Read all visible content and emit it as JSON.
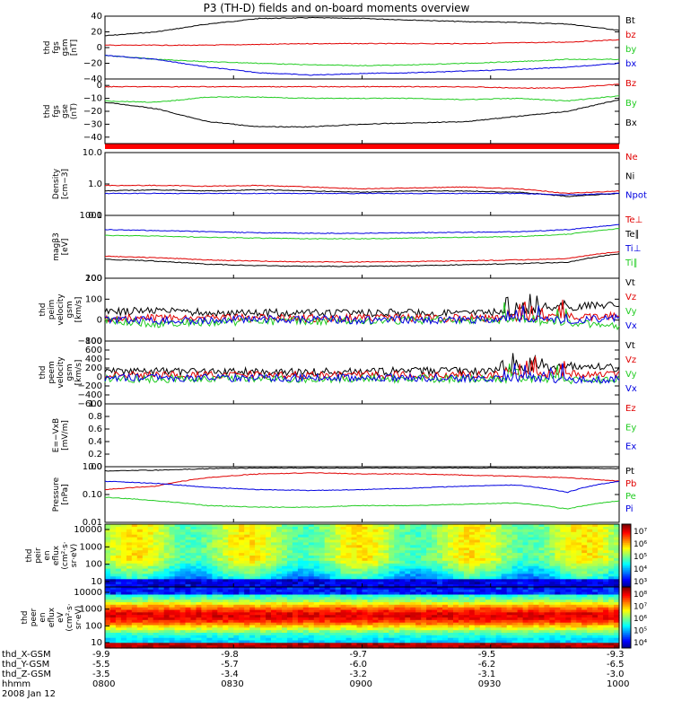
{
  "title": "P3 (TH-D) fields and on-board moments overview",
  "date": "2008 Jan 12",
  "colors": {
    "red": "#e00000",
    "green": "#22cc22",
    "blue": "#0000e0",
    "black": "#000000",
    "bar": "#ff0000"
  },
  "chart_data": {
    "type": "line",
    "x_time_ticks": [
      "0800",
      "0830",
      "0900",
      "0930",
      "1000"
    ],
    "ephemeris": [
      {
        "label": "thd_X-GSM",
        "values": [
          "-9.9",
          "-9.8",
          "-9.7",
          "-9.5",
          "-9.3"
        ]
      },
      {
        "label": "thd_Y-GSM",
        "values": [
          "-5.5",
          "-5.7",
          "-6.0",
          "-6.2",
          "-6.5"
        ]
      },
      {
        "label": "thd_Z-GSM",
        "values": [
          "-3.5",
          "-3.4",
          "-3.2",
          "-3.1",
          "-3.0"
        ]
      },
      {
        "label": "hhmm",
        "values": [
          "0800",
          "0830",
          "0900",
          "0930",
          "1000"
        ]
      }
    ],
    "panels": [
      {
        "id": "fgs_gsm",
        "ylabel": [
          "thd",
          "fgs",
          "gsm",
          "[nT]"
        ],
        "yscale": "linear",
        "ylim": [
          -40,
          40
        ],
        "yticks": [
          "40",
          "20",
          "0",
          "−20",
          "−40"
        ],
        "series": [
          {
            "name": "Bt",
            "color": "black",
            "values": [
              15,
              20,
              30,
              37,
              38,
              37,
              35,
              33,
              32,
              30,
              22
            ]
          },
          {
            "name": "bz",
            "color": "red",
            "values": [
              3,
              3,
              3,
              4,
              5,
              5,
              5,
              5,
              6,
              7,
              10
            ]
          },
          {
            "name": "by",
            "color": "green",
            "values": [
              -10,
              -15,
              -18,
              -20,
              -22,
              -23,
              -22,
              -20,
              -18,
              -15,
              -15
            ]
          },
          {
            "name": "bx",
            "color": "blue",
            "values": [
              -10,
              -15,
              -25,
              -32,
              -35,
              -33,
              -32,
              -30,
              -28,
              -25,
              -20
            ]
          }
        ]
      },
      {
        "id": "fgs_gse",
        "ylabel": [
          "thd",
          "fgs",
          "gse",
          "(nT)"
        ],
        "yscale": "linear",
        "ylim": [
          -45,
          5
        ],
        "yticks": [
          "0",
          "−10",
          "−20",
          "−30",
          "−40"
        ],
        "series": [
          {
            "name": "Bz",
            "color": "red",
            "values": [
              -1,
              -1,
              -1,
              -1,
              -1,
              -1,
              -1,
              -1,
              -2,
              -2,
              1
            ]
          },
          {
            "name": "By",
            "color": "green",
            "values": [
              -12,
              -13,
              -9,
              -9,
              -10,
              -10,
              -10,
              -11,
              -10,
              -12,
              -8
            ]
          },
          {
            "name": "Bx",
            "color": "black",
            "values": [
              -13,
              -18,
              -28,
              -32,
              -32,
              -30,
              -29,
              -28,
              -24,
              -20,
              -11
            ]
          }
        ]
      },
      {
        "id": "density",
        "ylabel": [
          "Density",
          "[cm−3]"
        ],
        "yscale": "log",
        "ylim": [
          0.1,
          10
        ],
        "yticks": [
          "10.0",
          "1.0",
          "0.1"
        ],
        "series": [
          {
            "name": "Ne",
            "color": "red",
            "values": [
              0.9,
              0.9,
              0.85,
              0.9,
              0.8,
              0.7,
              0.75,
              0.8,
              0.7,
              0.5,
              0.6
            ]
          },
          {
            "name": "Ni",
            "color": "black",
            "values": [
              0.6,
              0.65,
              0.6,
              0.65,
              0.6,
              0.55,
              0.6,
              0.6,
              0.55,
              0.4,
              0.5
            ]
          },
          {
            "name": "Npot",
            "color": "blue",
            "values": [
              0.5,
              0.5,
              0.5,
              0.5,
              0.5,
              0.5,
              0.5,
              0.5,
              0.5,
              0.45,
              0.5
            ]
          }
        ]
      },
      {
        "id": "temperature",
        "ylabel": [
          "magβ3",
          "[eV]"
        ],
        "yscale": "log",
        "ylim": [
          100,
          10000
        ],
        "yticks": [
          "1000",
          "100"
        ],
        "series": [
          {
            "name": "Te⊥",
            "color": "red",
            "values": [
              500,
              450,
              380,
              350,
              330,
              330,
              340,
              360,
              380,
              420,
              700
            ]
          },
          {
            "name": "Te∥",
            "color": "black",
            "values": [
              400,
              350,
              280,
              250,
              240,
              240,
              250,
              270,
              290,
              320,
              600
            ]
          },
          {
            "name": "Ti⊥",
            "color": "blue",
            "values": [
              3500,
              3300,
              3000,
              2800,
              2700,
              2700,
              2800,
              2900,
              3000,
              3500,
              5000
            ]
          },
          {
            "name": "Ti∥",
            "color": "green",
            "values": [
              2300,
              2200,
              2000,
              1900,
              1800,
              1800,
              1900,
              2000,
              2100,
              2500,
              3800
            ]
          }
        ]
      },
      {
        "id": "peim_velocity",
        "ylabel": [
          "thd",
          "peim",
          "velocity",
          "gsm",
          "[km/s]"
        ],
        "yscale": "linear",
        "ylim": [
          -100,
          200
        ],
        "yticks": [
          "200",
          "100",
          "0",
          "−100"
        ],
        "series": [
          {
            "name": "Vt",
            "color": "black",
            "values": [
              40,
              45,
              35,
              35,
              35,
              35,
              35,
              35,
              40,
              60,
              80
            ]
          },
          {
            "name": "Vz",
            "color": "red",
            "values": [
              10,
              10,
              10,
              10,
              10,
              10,
              10,
              10,
              10,
              15,
              20
            ]
          },
          {
            "name": "Vy",
            "color": "green",
            "values": [
              0,
              -20,
              -10,
              -5,
              -5,
              -5,
              0,
              0,
              0,
              -10,
              -30
            ]
          },
          {
            "name": "Vx",
            "color": "blue",
            "values": [
              0,
              0,
              0,
              5,
              5,
              0,
              0,
              0,
              5,
              0,
              10
            ]
          }
        ]
      },
      {
        "id": "peem_velocity",
        "ylabel": [
          "thd",
          "peem",
          "velocity",
          "gsm",
          "[km/s]"
        ],
        "yscale": "linear",
        "ylim": [
          -600,
          800
        ],
        "yticks": [
          "800",
          "600",
          "400",
          "200",
          "0",
          "−200",
          "−400",
          "−600"
        ],
        "series": [
          {
            "name": "Vt",
            "color": "black",
            "values": [
              120,
              120,
              120,
              120,
              120,
              120,
              130,
              130,
              150,
              250,
              200
            ]
          },
          {
            "name": "Vz",
            "color": "red",
            "values": [
              40,
              40,
              40,
              40,
              40,
              40,
              40,
              40,
              40,
              60,
              60
            ]
          },
          {
            "name": "Vy",
            "color": "green",
            "values": [
              -40,
              -40,
              -40,
              -40,
              -40,
              -40,
              -40,
              -40,
              -40,
              -80,
              -60
            ]
          },
          {
            "name": "Vx",
            "color": "blue",
            "values": [
              -20,
              -20,
              -20,
              -20,
              -20,
              -20,
              -20,
              -20,
              -20,
              -60,
              -40
            ]
          }
        ]
      },
      {
        "id": "e_vxb",
        "ylabel": [
          "E=−VxB",
          "[mV/m]"
        ],
        "yscale": "linear",
        "ylim": [
          0,
          1
        ],
        "yticks": [
          "1.0",
          "0.8",
          "0.6",
          "0.4",
          "0.2",
          "0.0"
        ],
        "series": [
          {
            "name": "Ez",
            "color": "red",
            "values": []
          },
          {
            "name": "Ey",
            "color": "green",
            "values": []
          },
          {
            "name": "Ex",
            "color": "blue",
            "values": []
          }
        ]
      },
      {
        "id": "pressure",
        "ylabel": [
          "Pressure",
          "[nPa]"
        ],
        "yscale": "log",
        "ylim": [
          0.01,
          1
        ],
        "yticks": [
          "1.00",
          "0.10",
          "0.01"
        ],
        "series": [
          {
            "name": "Pt",
            "color": "black",
            "values": [
              0.7,
              0.75,
              0.85,
              0.9,
              0.9,
              0.9,
              0.9,
              0.9,
              0.9,
              0.9,
              0.85
            ]
          },
          {
            "name": "Pb",
            "color": "red",
            "values": [
              0.15,
              0.2,
              0.4,
              0.55,
              0.6,
              0.55,
              0.55,
              0.5,
              0.45,
              0.4,
              0.3
            ]
          },
          {
            "name": "Pe",
            "color": "green",
            "values": [
              0.08,
              0.06,
              0.04,
              0.035,
              0.035,
              0.04,
              0.04,
              0.045,
              0.05,
              0.03,
              0.06
            ]
          },
          {
            "name": "Pi",
            "color": "blue",
            "values": [
              0.3,
              0.25,
              0.18,
              0.15,
              0.14,
              0.15,
              0.17,
              0.2,
              0.22,
              0.12,
              0.3
            ]
          }
        ]
      }
    ],
    "spectrograms": [
      {
        "id": "peir",
        "ylabel": [
          "thd",
          "peir",
          "en",
          "eflux",
          "(cm²·s·",
          "sr·eV)"
        ],
        "yticks": [
          "10000",
          "1000",
          "100",
          "10"
        ],
        "cbar": {
          "ticks": [
            "10⁷",
            "10⁶",
            "10⁵",
            "10⁴",
            "10³"
          ]
        }
      },
      {
        "id": "peer",
        "ylabel": [
          "thd",
          "peer",
          "en",
          "eflux",
          "eV",
          "(cm²·s·",
          "sr·eV)"
        ],
        "yticks": [
          "10000",
          "1000",
          "100",
          "10"
        ],
        "cbar": {
          "ticks": [
            "10⁸",
            "10⁷",
            "10⁶",
            "10⁵",
            "10⁴"
          ]
        }
      }
    ]
  }
}
